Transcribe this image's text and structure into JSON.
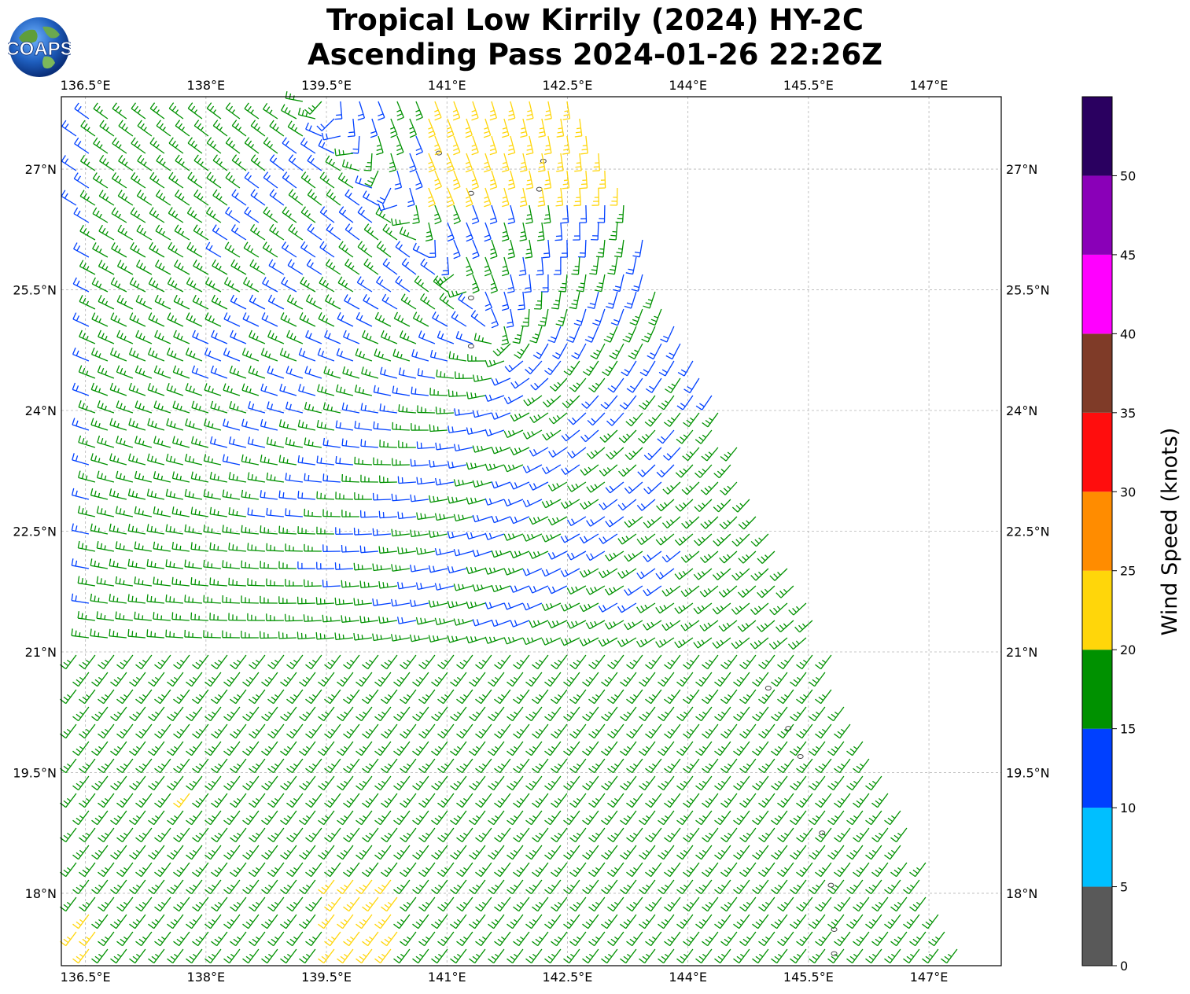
{
  "header": {
    "title_line1": "Tropical Low Kirrily (2024) HY-2C",
    "title_line2": "Ascending Pass 2024-01-26 22:26Z",
    "logo_text": "COAPS"
  },
  "map": {
    "lon_range": [
      136.2,
      147.9
    ],
    "lat_range": [
      17.1,
      27.9
    ],
    "lon_ticks": [
      "136.5°E",
      "138°E",
      "139.5°E",
      "141°E",
      "142.5°E",
      "144°E",
      "145.5°E",
      "147°E"
    ],
    "lon_tick_values": [
      136.5,
      138,
      139.5,
      141,
      142.5,
      144,
      145.5,
      147
    ],
    "lat_ticks": [
      "18°N",
      "19.5°N",
      "21°N",
      "22.5°N",
      "24°N",
      "25.5°N",
      "27°N"
    ],
    "lat_tick_values": [
      18,
      19.5,
      21,
      22.5,
      24,
      25.5,
      27
    ],
    "gridlines": true,
    "islands": [
      [
        145.0,
        20.55
      ],
      [
        145.25,
        20.05
      ],
      [
        145.4,
        19.7
      ],
      [
        145.67,
        18.75
      ],
      [
        145.78,
        18.1
      ],
      [
        145.82,
        17.55
      ],
      [
        145.82,
        17.25
      ],
      [
        141.3,
        26.7
      ],
      [
        142.2,
        27.1
      ],
      [
        142.15,
        26.75
      ],
      [
        141.3,
        25.4
      ],
      [
        141.3,
        24.8
      ],
      [
        140.9,
        27.2
      ]
    ]
  },
  "colorbar": {
    "label": "Wind Speed (knots)",
    "ticks": [
      "0",
      "5",
      "10",
      "15",
      "20",
      "25",
      "30",
      "35",
      "40",
      "45",
      "50"
    ],
    "colors": [
      "#595959",
      "#00bfff",
      "#0040ff",
      "#009100",
      "#ffd60a",
      "#ff8c00",
      "#ff0d0d",
      "#7f3b28",
      "#ff00ff",
      "#8a00b8",
      "#2a0060"
    ]
  }
}
